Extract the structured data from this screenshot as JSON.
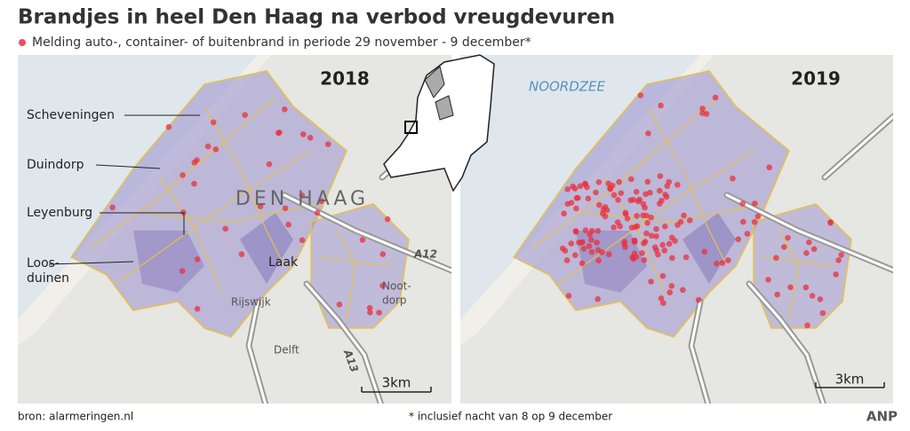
{
  "header": {
    "title": "Brandjes in heel Den Haag na verbod vreugdevuren",
    "legend": "Melding auto-, container- of buitenbrand in periode 29 november - 9 december*"
  },
  "maps": [
    {
      "year": "2018",
      "labels": {
        "city": "DEN HAAG",
        "scheveningen": "Scheveningen",
        "duindorp": "Duindorp",
        "leyenburg": "Leyenburg",
        "loosduinen": [
          "Loos-",
          "duinen"
        ],
        "laak": "Laak",
        "rijswijk": "Rijswijk",
        "delft": "Delft",
        "nootdorp": [
          "Noot-",
          "dorp"
        ],
        "a12": "A12",
        "a13": "A13"
      },
      "scale": "3km"
    },
    {
      "year": "2019",
      "labels": {
        "sea": "NOORDZEE"
      },
      "scale": "3km"
    }
  ],
  "footer": {
    "source": "bron: alarmeringen.nl",
    "note": "* inclusief nacht van 8 op 9 december",
    "agency": "ANP"
  }
}
